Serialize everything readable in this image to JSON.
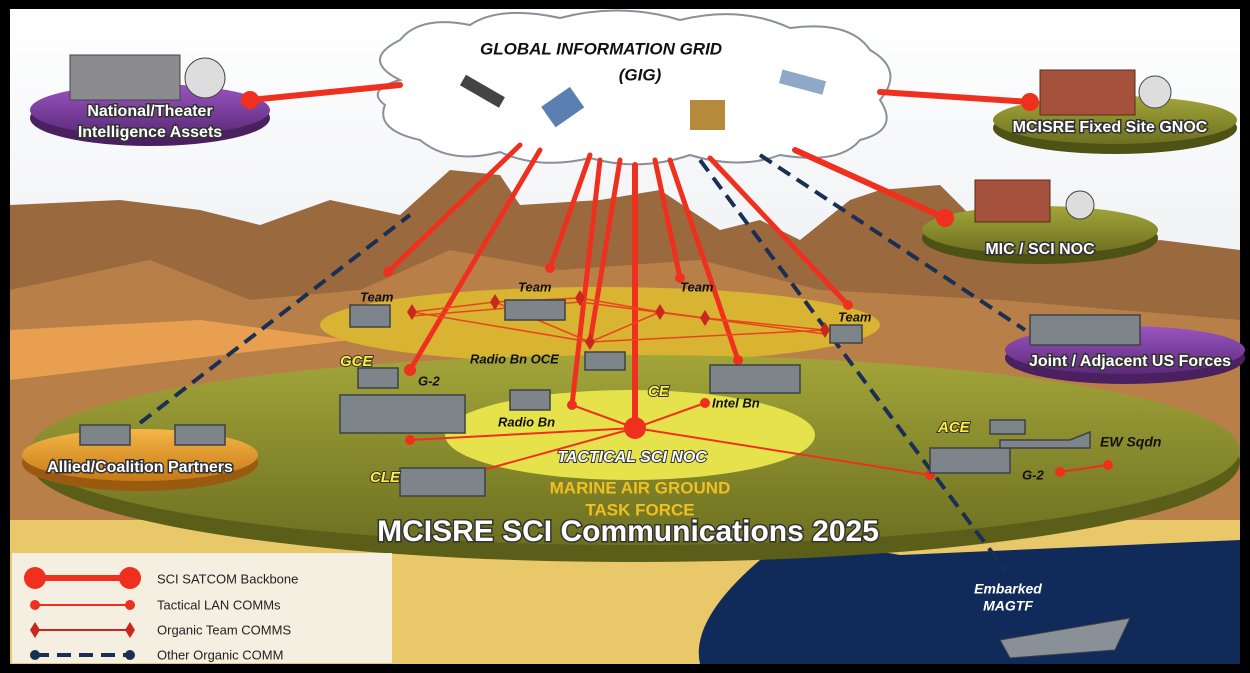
{
  "cloud": {
    "title": "GLOBAL INFORMATION GRID",
    "subtitle": "(GIG)"
  },
  "nodes": [
    {
      "label": "National/Theater"
    },
    {
      "label": "Intelligence Assets"
    },
    {
      "label": "MCISRE  Fixed Site GNOC"
    },
    {
      "label": "MIC / SCI NOC"
    },
    {
      "label": "Joint / Adjacent US Forces"
    },
    {
      "label": "Allied/Coalition Partners"
    },
    {
      "label": "Team"
    },
    {
      "label": "Team"
    },
    {
      "label": "Team"
    },
    {
      "label": "Team"
    },
    {
      "label": "GCE"
    },
    {
      "label": "G-2"
    },
    {
      "label": "Radio Bn OCE"
    },
    {
      "label": "Radio Bn"
    },
    {
      "label": "CE"
    },
    {
      "label": "Intel Bn"
    },
    {
      "label": "ACE"
    },
    {
      "label": "EW Sqdn"
    },
    {
      "label": "G-2"
    },
    {
      "label": "CLE"
    },
    {
      "label": "TACTICAL SCI NOC"
    },
    {
      "label": "MARINE AIR GROUND"
    },
    {
      "label": "TASK FORCE"
    },
    {
      "label": "Embarked"
    },
    {
      "label": "MAGTF"
    }
  ],
  "banner": "MCISRE SCI Communications 2025",
  "legend": [
    {
      "label": "SCI SATCOM  Backbone"
    },
    {
      "label": "Tactical LAN COMMs"
    },
    {
      "label": "Organic Team COMMS"
    },
    {
      "label": "Other Organic COMM"
    }
  ]
}
